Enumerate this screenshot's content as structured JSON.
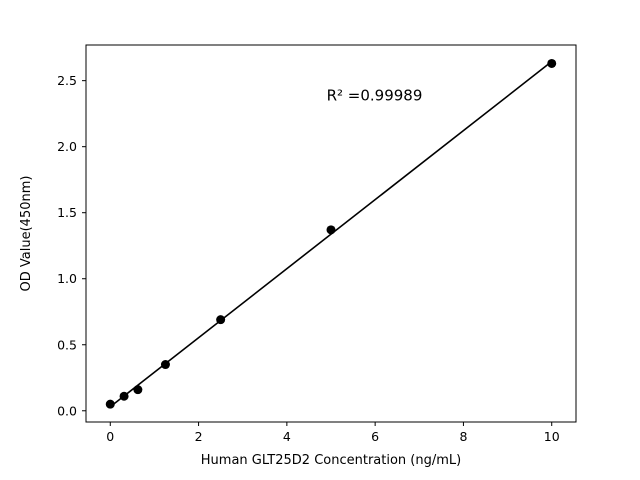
{
  "chart_data": {
    "type": "scatter",
    "title": "",
    "xlabel": "Human GLT25D2 Concentration (ng/mL)",
    "ylabel": "OD Value(450nm)",
    "annotation": "R² =0.99989",
    "x": [
      0,
      0.3125,
      0.625,
      1.25,
      2.5,
      5,
      10
    ],
    "y": [
      0.05,
      0.11,
      0.16,
      0.35,
      0.69,
      1.37,
      2.63
    ],
    "xlim": [
      -0.55,
      10.55
    ],
    "ylim": [
      -0.085,
      2.77
    ],
    "xticks": [
      0,
      2,
      4,
      6,
      8,
      10
    ],
    "yticks": [
      0.0,
      0.5,
      1.0,
      1.5,
      2.0,
      2.5
    ],
    "grid": false,
    "legend": "none",
    "marker_color": "#000000",
    "line_color": "#000000",
    "background_color": "#ffffff",
    "fit_line": true
  }
}
